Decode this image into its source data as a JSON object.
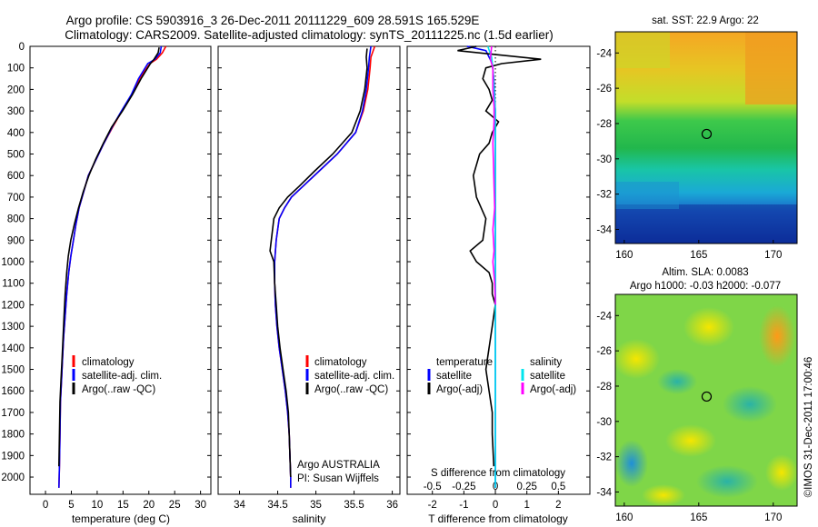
{
  "header": {
    "line1": "Argo profile: CS 5903916_3 26-Dec-2011 20111229_609 28.591S 165.529E",
    "line2": "Climatology: CARS2009. Satellite-adjusted climatology: synTS_20111225.nc (1.5d earlier)"
  },
  "colors": {
    "climatology": "#ff0000",
    "satellite": "#0000ff",
    "argo": "#000000",
    "salinity_satellite": "#00e5ee",
    "salinity_argo": "#ff00ff"
  },
  "depth_axis": {
    "ticks": [
      "0",
      "100",
      "200",
      "300",
      "400",
      "500",
      "600",
      "700",
      "800",
      "900",
      "1000",
      "1100",
      "1200",
      "1300",
      "1400",
      "1500",
      "1600",
      "1700",
      "1800",
      "1900",
      "2000"
    ],
    "ylim": [
      0,
      2080
    ]
  },
  "map_top": {
    "title": "sat. SST: 22.9 Argo: 22",
    "xticks": [
      "160",
      "165",
      "170"
    ],
    "yticks": [
      "-24",
      "-26",
      "-28",
      "-30",
      "-32",
      "-34"
    ],
    "xlim": [
      159.4,
      171.6
    ],
    "ylim": [
      -34.8,
      -22.8
    ],
    "argo_position": [
      165.529,
      -28.591
    ]
  },
  "map_bottom": {
    "title_line1": "Altim. SLA: 0.0083",
    "title_line2": "Argo h1000: -0.03 h2000: -0.077",
    "xticks": [
      "160",
      "165",
      "170"
    ],
    "yticks": [
      "-24",
      "-26",
      "-28",
      "-30",
      "-32",
      "-34"
    ],
    "xlim": [
      159.4,
      171.6
    ],
    "ylim": [
      -34.8,
      -22.8
    ],
    "argo_position": [
      165.529,
      -28.591
    ]
  },
  "footer_stamp": "©IMOS 31-Dec-2011 17:00:46",
  "chart_data": [
    {
      "type": "line",
      "xlabel": "temperature (deg C)",
      "xticks": [
        "0",
        "5",
        "10",
        "15",
        "20",
        "25",
        "30"
      ],
      "xlim": [
        -3,
        32
      ],
      "ylim": [
        0,
        2080
      ],
      "legend": [
        "climatology",
        "satellite-adj. clim.",
        "Argo(..raw -QC)"
      ],
      "legend_position": "lower-right",
      "series": [
        {
          "name": "climatology",
          "color": "#ff0000",
          "x": [
            23.3,
            22.6,
            21.5,
            20.2,
            18.2,
            16.7,
            14.8,
            13.0,
            11.3,
            9.8,
            8.3,
            7.4,
            6.5,
            5.9,
            5.4,
            4.9,
            4.5,
            4.1,
            3.8,
            3.5,
            3.3,
            3.1,
            2.9,
            2.8,
            2.7,
            2.6
          ],
          "y": [
            0,
            30,
            60,
            80,
            150,
            225,
            300,
            375,
            450,
            525,
            600,
            675,
            750,
            825,
            900,
            975,
            1050,
            1150,
            1250,
            1350,
            1450,
            1550,
            1650,
            1800,
            1950,
            2050
          ]
        },
        {
          "name": "satellite-adj. clim.",
          "color": "#0000ff",
          "x": [
            22.4,
            22.2,
            21.2,
            19.8,
            18.0,
            16.6,
            14.7,
            12.9,
            11.3,
            9.8,
            8.3,
            7.4,
            6.5,
            5.9,
            5.4,
            4.9,
            4.5,
            4.1,
            3.8,
            3.5,
            3.3,
            3.1,
            2.9,
            2.8,
            2.7,
            2.6
          ],
          "y": [
            0,
            30,
            60,
            80,
            150,
            225,
            300,
            375,
            450,
            525,
            600,
            675,
            750,
            825,
            900,
            975,
            1050,
            1150,
            1250,
            1350,
            1450,
            1550,
            1650,
            1800,
            1950,
            2050
          ]
        },
        {
          "name": "Argo(..raw -QC)",
          "color": "#000000",
          "x": [
            22.0,
            21.8,
            21.0,
            20.3,
            18.5,
            16.8,
            14.9,
            12.8,
            11.2,
            9.7,
            8.4,
            7.3,
            6.4,
            5.6,
            4.9,
            4.4,
            4.1,
            3.8,
            3.6,
            3.4,
            3.2,
            3.0,
            2.8,
            2.7,
            2.6
          ],
          "y": [
            5,
            30,
            60,
            80,
            150,
            225,
            300,
            375,
            450,
            525,
            600,
            675,
            750,
            825,
            900,
            975,
            1050,
            1150,
            1250,
            1350,
            1450,
            1550,
            1650,
            1800,
            1950
          ]
        }
      ]
    },
    {
      "type": "line",
      "xlabel": "salinity",
      "xticks": [
        "34",
        "34.5",
        "35",
        "35.5",
        "36"
      ],
      "xlim": [
        33.72,
        36.1
      ],
      "ylim": [
        0,
        2080
      ],
      "legend": [
        "climatology",
        "satellite-adj. clim.",
        "Argo(..raw -QC)"
      ],
      "legend_position": "lower-right",
      "annotation_line1": "Argo AUSTRALIA",
      "annotation_line2": "PI: Susan Wijffels",
      "series": [
        {
          "name": "climatology",
          "color": "#ff0000",
          "x": [
            35.77,
            35.72,
            35.71,
            35.68,
            35.62,
            35.52,
            35.28,
            35.04,
            34.83,
            34.68,
            34.59,
            34.52,
            34.48,
            34.46,
            34.46,
            34.47,
            34.49,
            34.52,
            34.56,
            34.6,
            34.63,
            34.65,
            34.66,
            34.67,
            34.67
          ],
          "y": [
            0,
            50,
            100,
            200,
            300,
            400,
            500,
            580,
            650,
            700,
            750,
            800,
            900,
            1000,
            1100,
            1200,
            1300,
            1400,
            1500,
            1600,
            1700,
            1800,
            1900,
            2000,
            2050
          ]
        },
        {
          "name": "satellite-adj. clim.",
          "color": "#0000ff",
          "x": [
            35.72,
            35.7,
            35.69,
            35.66,
            35.61,
            35.52,
            35.28,
            35.04,
            34.83,
            34.68,
            34.59,
            34.52,
            34.48,
            34.46,
            34.46,
            34.47,
            34.49,
            34.52,
            34.56,
            34.6,
            34.63,
            34.65,
            34.66,
            34.67,
            34.67
          ],
          "y": [
            0,
            50,
            100,
            200,
            300,
            400,
            500,
            580,
            650,
            700,
            750,
            800,
            900,
            1000,
            1100,
            1200,
            1300,
            1400,
            1500,
            1600,
            1700,
            1800,
            1900,
            2000,
            2050
          ]
        },
        {
          "name": "Argo(..raw -QC)",
          "color": "#000000",
          "x": [
            35.67,
            35.66,
            35.67,
            35.64,
            35.58,
            35.47,
            35.22,
            34.98,
            34.78,
            34.63,
            34.52,
            34.45,
            34.4,
            34.45,
            34.46,
            34.48,
            34.5,
            34.53,
            34.57,
            34.61,
            34.64,
            34.65,
            34.66,
            34.67
          ],
          "y": [
            10,
            50,
            100,
            200,
            300,
            400,
            500,
            580,
            650,
            700,
            750,
            800,
            950,
            1000,
            1100,
            1200,
            1300,
            1400,
            1500,
            1600,
            1700,
            1800,
            1900,
            2000
          ]
        }
      ]
    },
    {
      "type": "line",
      "xlabel": "T difference from climatology",
      "top_label": "S difference from climatology",
      "xticks": [
        "-2",
        "-1",
        "0",
        "1",
        "2"
      ],
      "sticks": [
        "-0.5",
        "-0.25",
        "0",
        "0.25",
        "0.5"
      ],
      "xlim": [
        -2.8,
        3.0
      ],
      "ylim": [
        0,
        2080
      ],
      "legend": {
        "temperature_heading": "temperature",
        "salinity_heading": "salinity",
        "temperature_items": [
          "satellite",
          "Argo(-adj)"
        ],
        "salinity_items": [
          "satellite",
          "Argo(-adj)"
        ]
      },
      "legend_position": "lower-right",
      "series": [
        {
          "name": "satellite",
          "color": "#0000ff",
          "x": [
            -0.9,
            -0.3,
            -0.2,
            -0.1,
            -0.05,
            0,
            0,
            0,
            0,
            0,
            0,
            0
          ],
          "y": [
            0,
            20,
            50,
            80,
            150,
            300,
            500,
            800,
            1100,
            1400,
            1700,
            2050
          ]
        },
        {
          "name": "Argo(-adj)",
          "color": "#000000",
          "x": [
            -0.6,
            -1.2,
            1.45,
            0.2,
            -0.3,
            -0.4,
            -0.2,
            -0.1,
            -0.3,
            0.1,
            -0.1,
            -0.2,
            -0.5,
            -0.7,
            -0.6,
            -0.3,
            -0.4,
            -0.8,
            -0.6,
            -0.2,
            -0.1,
            -0.1,
            0.0,
            -0.1,
            -0.2,
            -0.3,
            -0.2,
            -0.1,
            -0.1,
            -0.05
          ],
          "y": [
            0,
            20,
            60,
            80,
            100,
            150,
            200,
            250,
            300,
            350,
            400,
            450,
            500,
            600,
            700,
            800,
            900,
            950,
            1000,
            1050,
            1100,
            1150,
            1200,
            1300,
            1400,
            1500,
            1600,
            1700,
            1800,
            1950
          ]
        },
        {
          "name": "satellite",
          "color": "#00e5ee",
          "x": [
            -0.06,
            -0.03,
            -0.02,
            -0.01,
            0,
            0,
            0,
            0,
            0,
            0,
            0,
            0
          ],
          "y": [
            0,
            50,
            100,
            200,
            300,
            500,
            800,
            1100,
            1400,
            1700,
            1900,
            2050
          ]
        },
        {
          "name": "Argo(-adj)",
          "color": "#ff00ff",
          "x": [
            -0.03,
            -0.04,
            -0.02,
            -0.02,
            -0.01,
            -0.01,
            -0.02,
            -0.015,
            -0.01,
            -0.005,
            -0.02,
            -0.01,
            -0.02,
            -0.005,
            0
          ],
          "y": [
            0,
            60,
            100,
            200,
            280,
            350,
            450,
            550,
            650,
            750,
            850,
            950,
            1000,
            1100,
            1200
          ]
        }
      ]
    }
  ]
}
